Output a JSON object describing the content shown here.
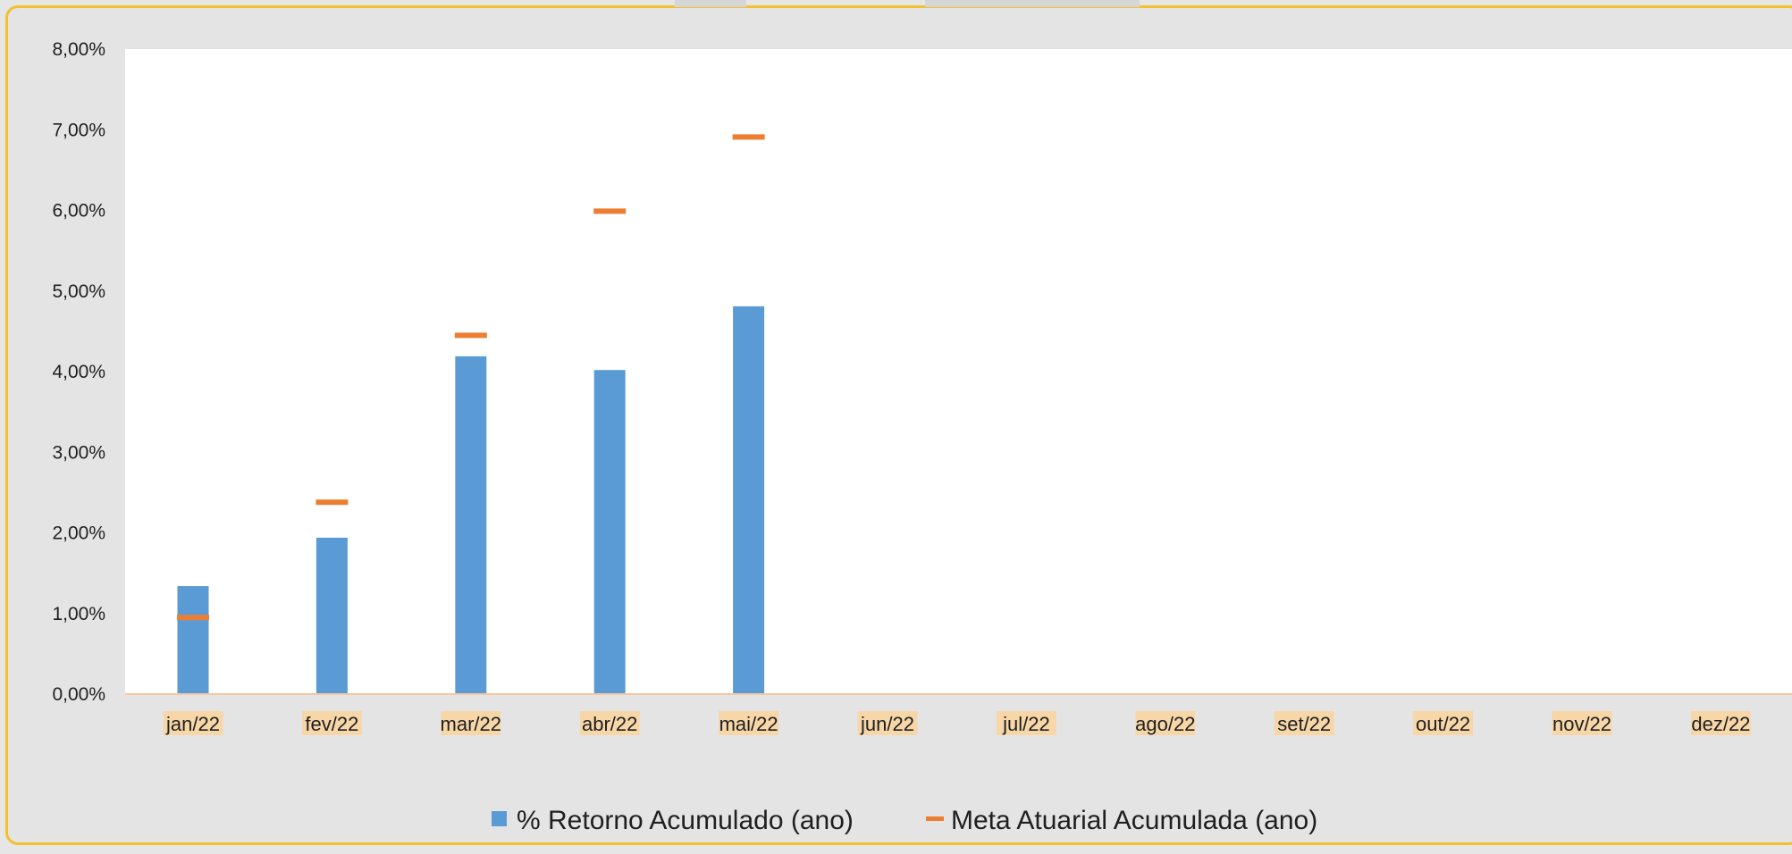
{
  "chart_data": {
    "type": "bar",
    "categories": [
      "jan/22",
      "fev/22",
      "mar/22",
      "abr/22",
      "mai/22",
      "jun/22",
      "jul/22",
      "ago/22",
      "set/22",
      "out/22",
      "nov/22",
      "dez/22"
    ],
    "series": [
      {
        "name": "% Retorno Acumulado (ano)",
        "type": "bar",
        "color": "#5b9bd5",
        "values": [
          1.34,
          1.94,
          4.19,
          4.02,
          4.81,
          null,
          null,
          null,
          null,
          null,
          null,
          null
        ]
      },
      {
        "name": "Meta Atuarial Acumulada (ano)",
        "type": "marker-line",
        "color": "#ed7d31",
        "values": [
          0.95,
          2.38,
          4.45,
          5.99,
          6.91,
          null,
          null,
          null,
          null,
          null,
          null,
          null
        ]
      }
    ],
    "y_ticks": [
      "0,00%",
      "1,00%",
      "2,00%",
      "3,00%",
      "4,00%",
      "5,00%",
      "6,00%",
      "7,00%",
      "8,00%"
    ],
    "ylim": [
      0,
      8
    ],
    "grid": false,
    "legend_position": "bottom",
    "colors": {
      "bar": "#5b9bd5",
      "meta": "#ed7d31",
      "axis": "#f4c7a0",
      "label_bg": "#f7d6a8",
      "frame_border": "#f2c12e"
    }
  }
}
